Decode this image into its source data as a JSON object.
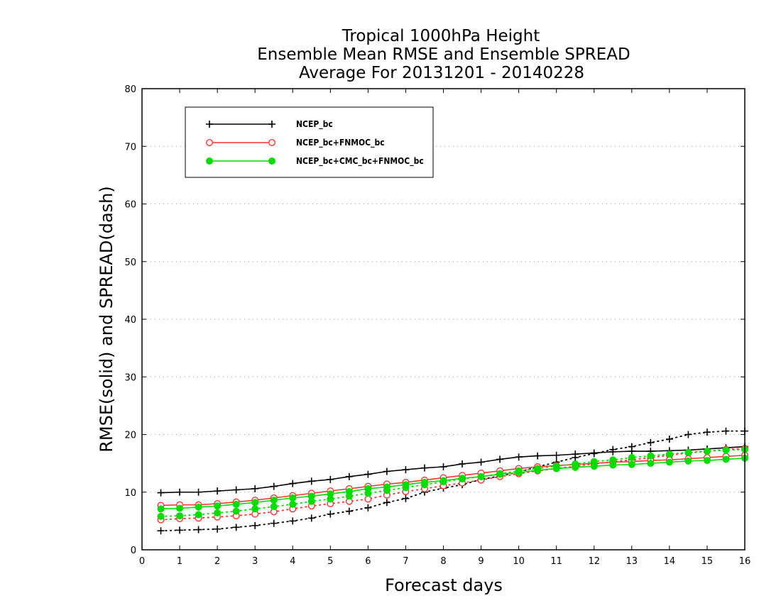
{
  "chart_data": {
    "type": "line",
    "title": [
      "Tropical 1000hPa Height",
      "Ensemble Mean RMSE and Ensemble SPREAD",
      "Average For 20131201 - 20140228"
    ],
    "xlabel": "Forecast days",
    "ylabel": "RMSE(solid) and SPREAD(dash)",
    "xlim": [
      0,
      16
    ],
    "ylim": [
      0,
      80
    ],
    "xticks": [
      "0",
      "1",
      "2",
      "3",
      "4",
      "5",
      "6",
      "7",
      "8",
      "9",
      "10",
      "11",
      "12",
      "13",
      "14",
      "15",
      "16"
    ],
    "yticks": [
      "0",
      "10",
      "20",
      "30",
      "40",
      "50",
      "60",
      "70",
      "80"
    ],
    "grid": "horizontal dotted",
    "legend_position": "top-left",
    "x": [
      0.5,
      1,
      1.5,
      2,
      2.5,
      3,
      3.5,
      4,
      4.5,
      5,
      5.5,
      6,
      6.5,
      7,
      7.5,
      8,
      8.5,
      9,
      9.5,
      10,
      10.5,
      11,
      11.5,
      12,
      12.5,
      13,
      13.5,
      14,
      14.5,
      15,
      15.5,
      16
    ],
    "series": [
      {
        "name": "NCEP_bc",
        "color": "#000000",
        "marker": "plus",
        "rmse": [
          9.9,
          10.0,
          10.0,
          10.2,
          10.4,
          10.6,
          11.0,
          11.5,
          11.9,
          12.2,
          12.7,
          13.1,
          13.6,
          13.9,
          14.2,
          14.4,
          14.9,
          15.2,
          15.7,
          16.1,
          16.3,
          16.4,
          16.6,
          16.8,
          17.0,
          17.1,
          17.1,
          17.2,
          17.3,
          17.5,
          17.7,
          17.9
        ],
        "spread": [
          3.3,
          3.4,
          3.5,
          3.6,
          3.9,
          4.2,
          4.6,
          5.0,
          5.5,
          6.2,
          6.7,
          7.3,
          8.2,
          8.9,
          10.0,
          10.7,
          11.3,
          12.2,
          12.8,
          13.5,
          14.4,
          15.2,
          16.0,
          16.7,
          17.4,
          17.9,
          18.6,
          19.2,
          20.0,
          20.4,
          20.6,
          20.6
        ]
      },
      {
        "name": "NCEP_bc+FNMOC_bc",
        "color": "#ff3333",
        "marker": "open-circle",
        "rmse": [
          7.7,
          7.8,
          7.8,
          8.0,
          8.3,
          8.6,
          9.0,
          9.4,
          9.8,
          10.2,
          10.6,
          11.0,
          11.4,
          11.7,
          12.1,
          12.5,
          12.9,
          13.3,
          13.7,
          14.1,
          14.4,
          14.6,
          14.8,
          15.0,
          15.2,
          15.3,
          15.5,
          15.6,
          15.8,
          16.0,
          16.2,
          16.4
        ],
        "spread": [
          5.2,
          5.4,
          5.5,
          5.7,
          5.9,
          6.2,
          6.6,
          7.1,
          7.6,
          8.0,
          8.4,
          8.8,
          9.5,
          10.1,
          10.6,
          11.1,
          11.6,
          12.1,
          12.7,
          13.2,
          13.7,
          14.1,
          14.5,
          14.9,
          15.3,
          15.6,
          16.0,
          16.4,
          16.8,
          17.1,
          17.4,
          17.6
        ]
      },
      {
        "name": "NCEP_bc+CMC_bc+FNMOC_bc",
        "color": "#00dd00",
        "marker": "filled-circle",
        "rmse": [
          7.1,
          7.2,
          7.4,
          7.6,
          7.9,
          8.2,
          8.6,
          9.0,
          9.3,
          9.7,
          10.1,
          10.6,
          10.9,
          11.3,
          11.7,
          12.0,
          12.4,
          12.7,
          13.1,
          13.4,
          13.8,
          14.1,
          14.3,
          14.5,
          14.7,
          14.8,
          15.0,
          15.2,
          15.4,
          15.5,
          15.7,
          15.9
        ],
        "spread": [
          5.8,
          5.9,
          6.1,
          6.4,
          6.7,
          7.1,
          7.5,
          7.9,
          8.4,
          8.8,
          9.3,
          9.8,
          10.3,
          10.8,
          11.3,
          11.8,
          12.3,
          12.7,
          13.2,
          13.7,
          14.1,
          14.5,
          14.9,
          15.3,
          15.6,
          16.0,
          16.3,
          16.6,
          16.9,
          17.1,
          17.3,
          17.4
        ]
      }
    ]
  }
}
